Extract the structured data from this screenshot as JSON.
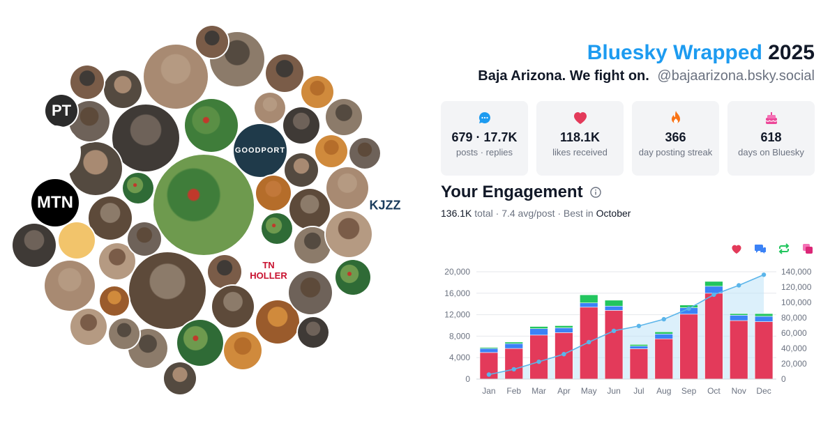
{
  "header": {
    "title_brand": "Bluesky Wrapped",
    "title_year": "2025",
    "display_name": "Baja Arizona. We fight on.",
    "handle": "@bajaarizona.bsky.social",
    "brand_color": "#1d9bf0"
  },
  "stats": [
    {
      "icon": "speech-bubble-icon",
      "value": "679 · 17.7K",
      "label": "posts · replies"
    },
    {
      "icon": "heart-icon",
      "value": "118.1K",
      "label": "likes received"
    },
    {
      "icon": "flame-icon",
      "value": "366",
      "label": "day posting streak"
    },
    {
      "icon": "cake-icon",
      "value": "618",
      "label": "days on Bluesky"
    }
  ],
  "engagement": {
    "title": "Your Engagement",
    "total_value": "136.1K",
    "total_label": "total",
    "avg": "7.4 avg/post",
    "best_label": "Best in",
    "best_month": "October"
  },
  "legend": [
    "heart-icon",
    "reply-icon",
    "repost-icon",
    "quote-icon"
  ],
  "avatars": {
    "logos": [
      {
        "name": "pt-logo",
        "text": "PT"
      },
      {
        "name": "mtn-logo",
        "text": "MTN"
      },
      {
        "name": "goodport-logo",
        "text": "GOODPORT"
      },
      {
        "name": "kjzz-logo",
        "text": "KJZZ"
      },
      {
        "name": "tn-holler-logo",
        "text": "TN HOLLER"
      }
    ]
  },
  "chart_data": {
    "type": "bar",
    "stacked": true,
    "categories": [
      "Jan",
      "Feb",
      "Mar",
      "Apr",
      "May",
      "Jun",
      "Jul",
      "Aug",
      "Sep",
      "Oct",
      "Nov",
      "Dec"
    ],
    "series": [
      {
        "icon": "heart-icon",
        "color": "#e33a5a",
        "values": [
          4950,
          5700,
          8200,
          8650,
          13400,
          12800,
          5650,
          7500,
          12100,
          16000,
          10900,
          10700
        ]
      },
      {
        "icon": "reply-icon",
        "color": "#3b82f6",
        "values": [
          750,
          900,
          1200,
          900,
          800,
          800,
          500,
          900,
          1200,
          1300,
          1000,
          1000
        ]
      },
      {
        "icon": "repost-icon",
        "color": "#22c55e",
        "values": [
          200,
          300,
          400,
          400,
          1500,
          1100,
          300,
          400,
          500,
          900,
          300,
          500
        ]
      }
    ],
    "cumulative": {
      "color": "#5bb5ea",
      "values": [
        5900,
        12800,
        22600,
        32500,
        48200,
        62900,
        69300,
        78100,
        91900,
        110100,
        122300,
        136100
      ]
    },
    "y_left": {
      "min": 0,
      "max": 20000,
      "ticks": [
        "0",
        "4,000",
        "8,000",
        "12,000",
        "16,000",
        "20,000"
      ]
    },
    "y_right": {
      "min": 0,
      "max": 140000,
      "ticks": [
        "0",
        "20,000",
        "40,000",
        "60,000",
        "80,000",
        "100,000",
        "120,000",
        "140,000"
      ]
    },
    "grid": true
  }
}
